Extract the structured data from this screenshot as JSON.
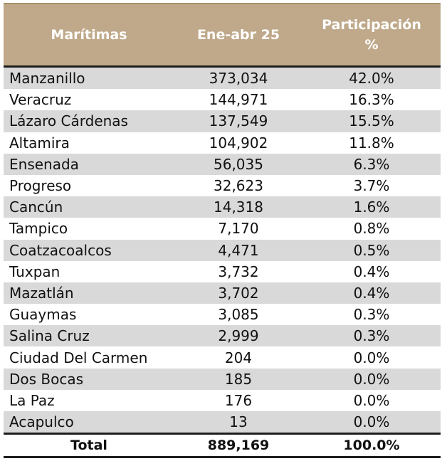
{
  "header": {
    "col1": "Marítimas",
    "col2": "Ene-abr 25",
    "col3_line1": "Participación",
    "col3_line2": "%"
  },
  "rows": [
    {
      "name": "Manzanillo",
      "value": "373,034",
      "share": "42.0%"
    },
    {
      "name": "Veracruz",
      "value": "144,971",
      "share": "16.3%"
    },
    {
      "name": "Lázaro Cárdenas",
      "value": "137,549",
      "share": "15.5%"
    },
    {
      "name": "Altamira",
      "value": "104,902",
      "share": "11.8%"
    },
    {
      "name": "Ensenada",
      "value": "56,035",
      "share": "6.3%"
    },
    {
      "name": "Progreso",
      "value": "32,623",
      "share": "3.7%"
    },
    {
      "name": "Cancún",
      "value": "14,318",
      "share": "1.6%"
    },
    {
      "name": "Tampico",
      "value": "7,170",
      "share": "0.8%"
    },
    {
      "name": "Coatzacoalcos",
      "value": "4,471",
      "share": "0.5%"
    },
    {
      "name": "Tuxpan",
      "value": "3,732",
      "share": "0.4%"
    },
    {
      "name": "Mazatlán",
      "value": "3,702",
      "share": "0.4%"
    },
    {
      "name": "Guaymas",
      "value": "3,085",
      "share": "0.3%"
    },
    {
      "name": "Salina Cruz",
      "value": "2,999",
      "share": "0.3%"
    },
    {
      "name": "Ciudad Del Carmen",
      "value": "204",
      "share": "0.0%"
    },
    {
      "name": "Dos Bocas",
      "value": "185",
      "share": "0.0%"
    },
    {
      "name": "La Paz",
      "value": "176",
      "share": "0.0%"
    },
    {
      "name": "Acapulco",
      "value": "13",
      "share": "0.0%"
    }
  ],
  "total": {
    "label": "Total",
    "value": "889,169",
    "share": "100.0%"
  },
  "colors": {
    "header_bg": "#bfa98a",
    "stripe": "#d9d9d9",
    "rule": "#1e1e1e"
  }
}
